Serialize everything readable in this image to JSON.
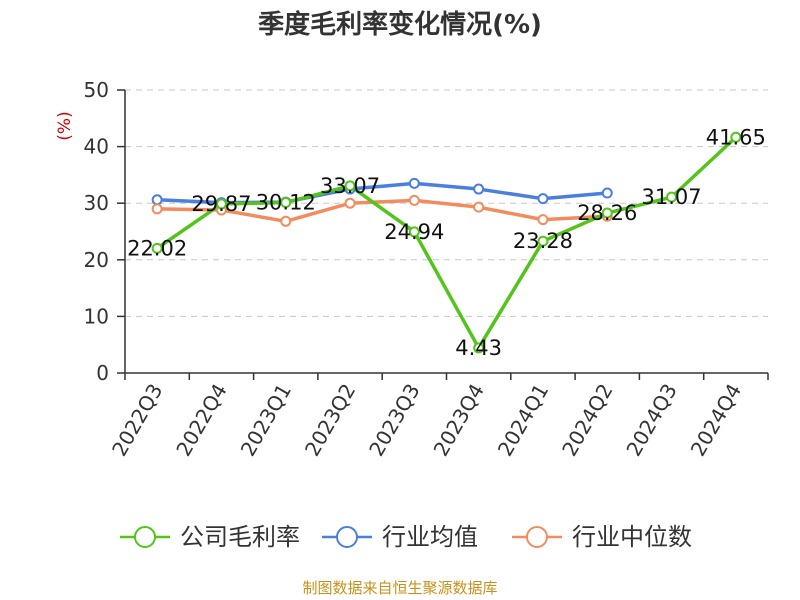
{
  "header": {
    "title": "季度毛利率变化情况(%)"
  },
  "footer": {
    "source": "制图数据来自恒生聚源数据库"
  },
  "chart_data": {
    "type": "line",
    "title": "季度毛利率变化情况(%)",
    "xlabel": "",
    "ylabel": "(%)",
    "ylabel_color": "#cc0000",
    "ylim": [
      0,
      50
    ],
    "yticks": [
      0,
      10,
      20,
      30,
      40,
      50
    ],
    "grid": true,
    "legend_position": "bottom",
    "categories": [
      "2022Q3",
      "2022Q4",
      "2023Q1",
      "2023Q2",
      "2023Q3",
      "2023Q4",
      "2024Q1",
      "2024Q2",
      "2024Q3",
      "2024Q4"
    ],
    "series": [
      {
        "name": "公司毛利率",
        "color": "#52c41a",
        "values": [
          22.02,
          29.87,
          30.12,
          33.07,
          24.94,
          4.43,
          23.28,
          28.26,
          31.07,
          41.65
        ],
        "labels": [
          "22.02",
          "29.87",
          "30.12",
          "33.07",
          "24.94",
          "4.43",
          "23.28",
          "28.26",
          "31.07",
          "41.65"
        ]
      },
      {
        "name": "行业均值",
        "color": "#4a7fe0",
        "values": [
          30.6,
          30.1,
          30.2,
          32.5,
          33.5,
          32.5,
          30.8,
          31.8,
          null,
          null
        ]
      },
      {
        "name": "行业中位数",
        "color": "#f28c5e",
        "values": [
          29.0,
          28.8,
          26.8,
          30.0,
          30.5,
          29.3,
          27.1,
          27.7,
          null,
          null
        ]
      }
    ]
  }
}
